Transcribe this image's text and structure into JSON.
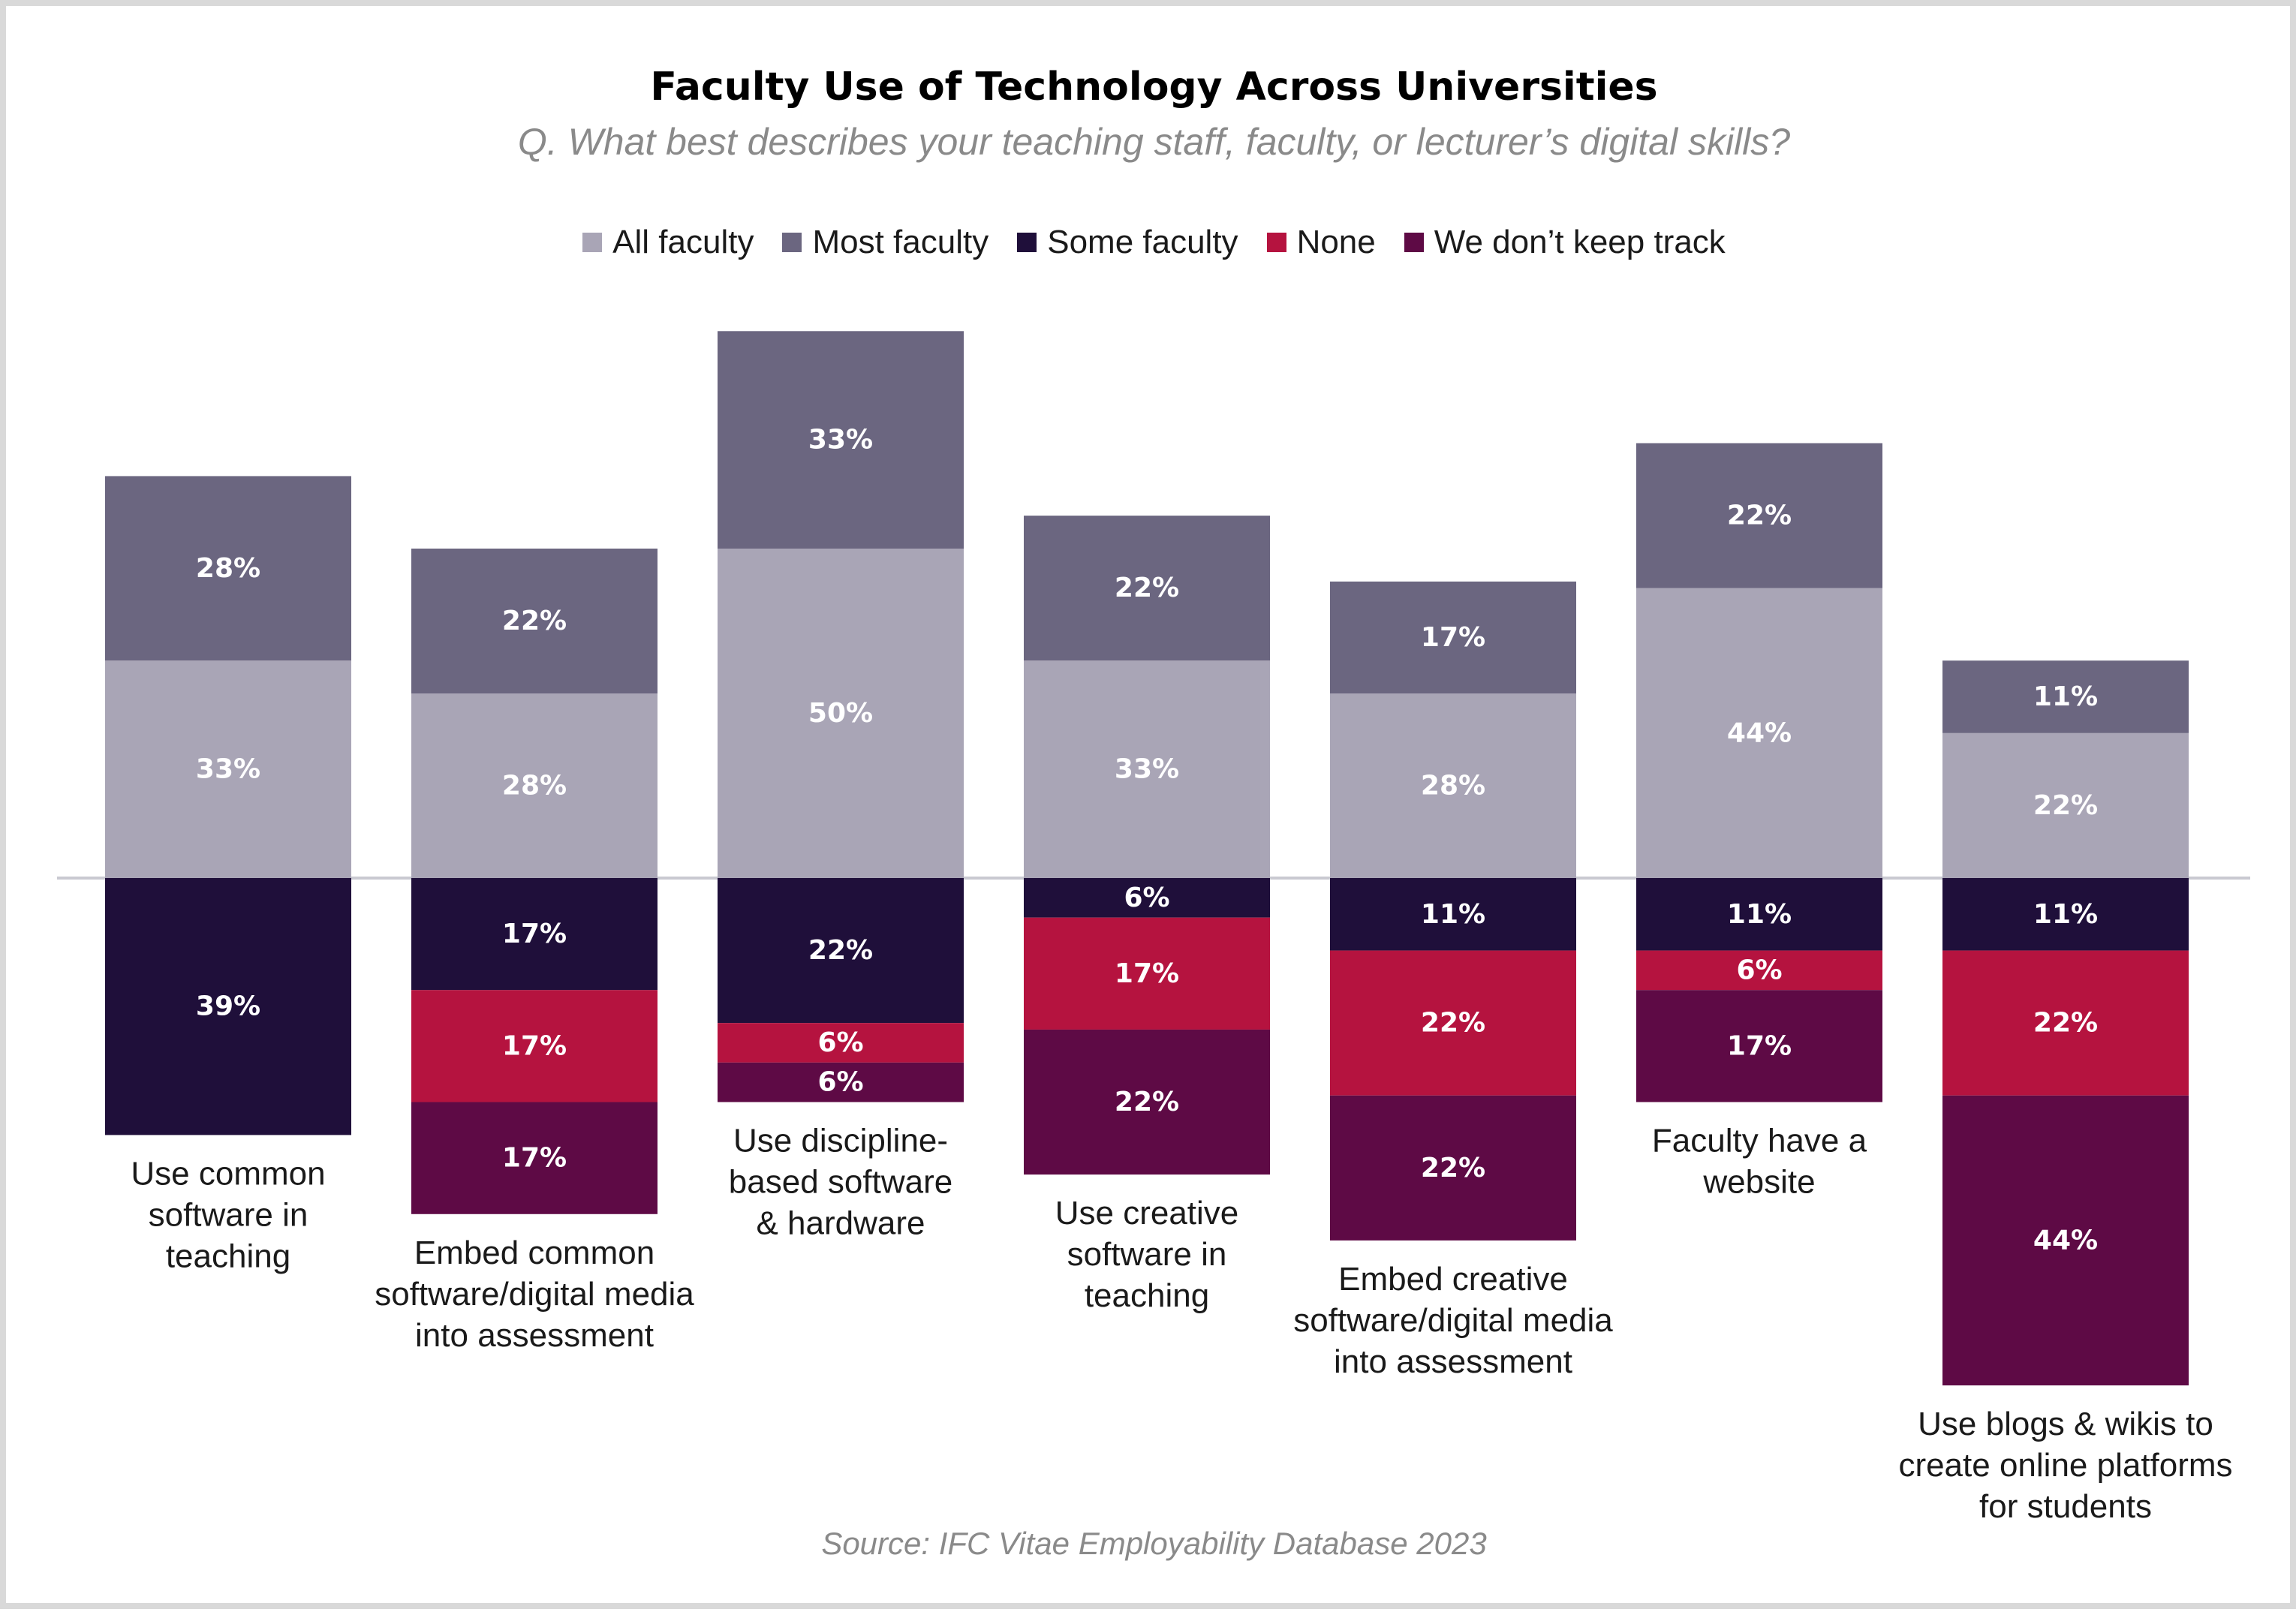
{
  "chart_data": {
    "type": "bar",
    "stacked": "diverging",
    "title": "Faculty Use of Technology Across Universities",
    "subtitle": "Q. What best describes your teaching staff, faculty, or lecturer’s digital skills?",
    "source": "Source: IFC Vitae Employability Database 2023",
    "legend_position": "top",
    "grid": false,
    "categories": [
      [
        "Use common",
        "software in",
        "teaching"
      ],
      [
        "Embed common",
        "software/digital media",
        "into assessment"
      ],
      [
        "Use discipline-",
        "based software",
        "& hardware"
      ],
      [
        "Use creative",
        "software in",
        "teaching"
      ],
      [
        "Embed creative",
        "software/digital media",
        "into assessment"
      ],
      [
        "Faculty have a",
        "website"
      ],
      [
        "Use blogs & wikis to",
        "create online platforms",
        "for students"
      ]
    ],
    "series": [
      {
        "name": "All faculty",
        "color": "#a9a5b6",
        "direction": "up",
        "values": [
          33,
          28,
          50,
          33,
          28,
          44,
          22
        ]
      },
      {
        "name": "Most faculty",
        "color": "#6b6680",
        "direction": "up",
        "values": [
          28,
          22,
          33,
          22,
          17,
          22,
          11
        ]
      },
      {
        "name": "Some faculty",
        "color": "#1f0f3a",
        "direction": "down",
        "values": [
          39,
          17,
          22,
          6,
          11,
          11,
          11
        ]
      },
      {
        "name": "None",
        "color": "#b5133f",
        "direction": "down",
        "values": [
          0,
          17,
          6,
          17,
          22,
          6,
          22
        ]
      },
      {
        "name": "We don’t keep track",
        "color": "#5e0a45",
        "direction": "down",
        "values": [
          0,
          17,
          6,
          22,
          22,
          17,
          44
        ]
      }
    ],
    "value_suffix": "%"
  }
}
